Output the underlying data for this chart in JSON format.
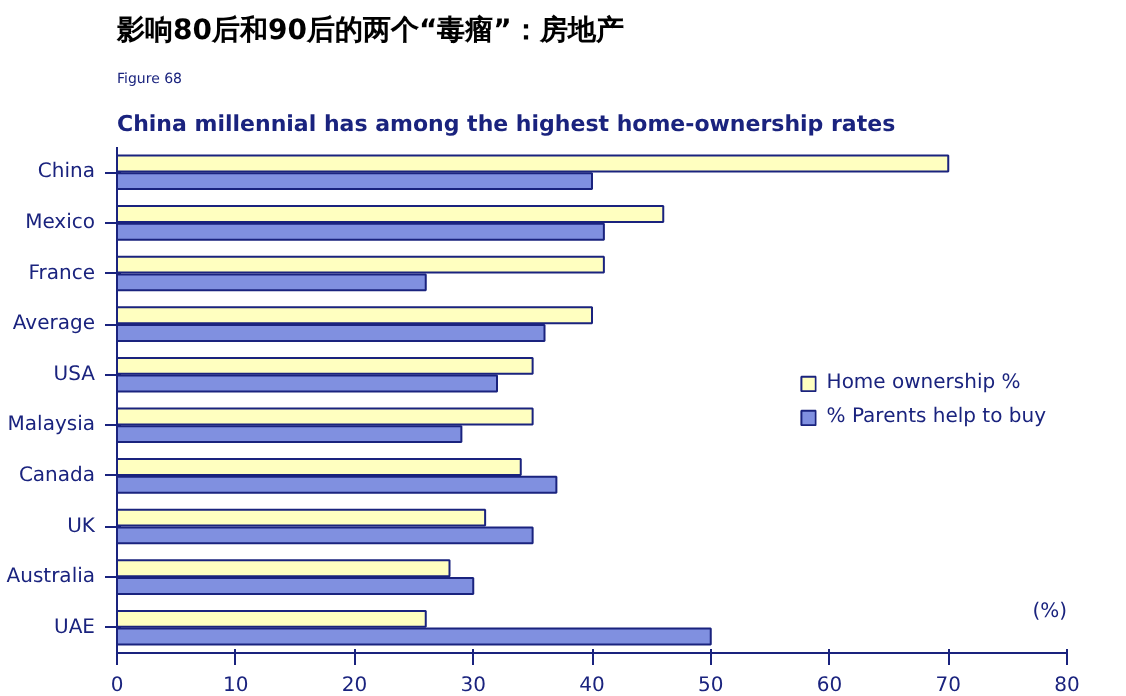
{
  "chart_data": {
    "type": "bar",
    "orientation": "horizontal",
    "title": "影响80后和90后的两个“毒瘤”：房地产",
    "subtitle": "China millennial has among the highest home-ownership rates",
    "annotations": [
      "Figure 68"
    ],
    "xlabel": "(%)",
    "categories": [
      "China",
      "Mexico",
      "France",
      "Average",
      "USA",
      "Malaysia",
      "Canada",
      "UK",
      "Australia",
      "UAE"
    ],
    "series": [
      {
        "name": "Home ownership %",
        "color": "#ffffc0",
        "values": [
          70,
          46,
          41,
          40,
          35,
          35,
          34,
          31,
          28,
          26
        ]
      },
      {
        "name": "% Parents help to buy",
        "color": "#8090e0",
        "values": [
          40,
          41,
          26,
          36,
          32,
          29,
          37,
          35,
          30,
          50
        ]
      }
    ],
    "xlim": [
      0,
      80
    ],
    "xticks": [
      0,
      10,
      20,
      30,
      40,
      50,
      60,
      70,
      80
    ],
    "grid": false,
    "legend": "right"
  }
}
